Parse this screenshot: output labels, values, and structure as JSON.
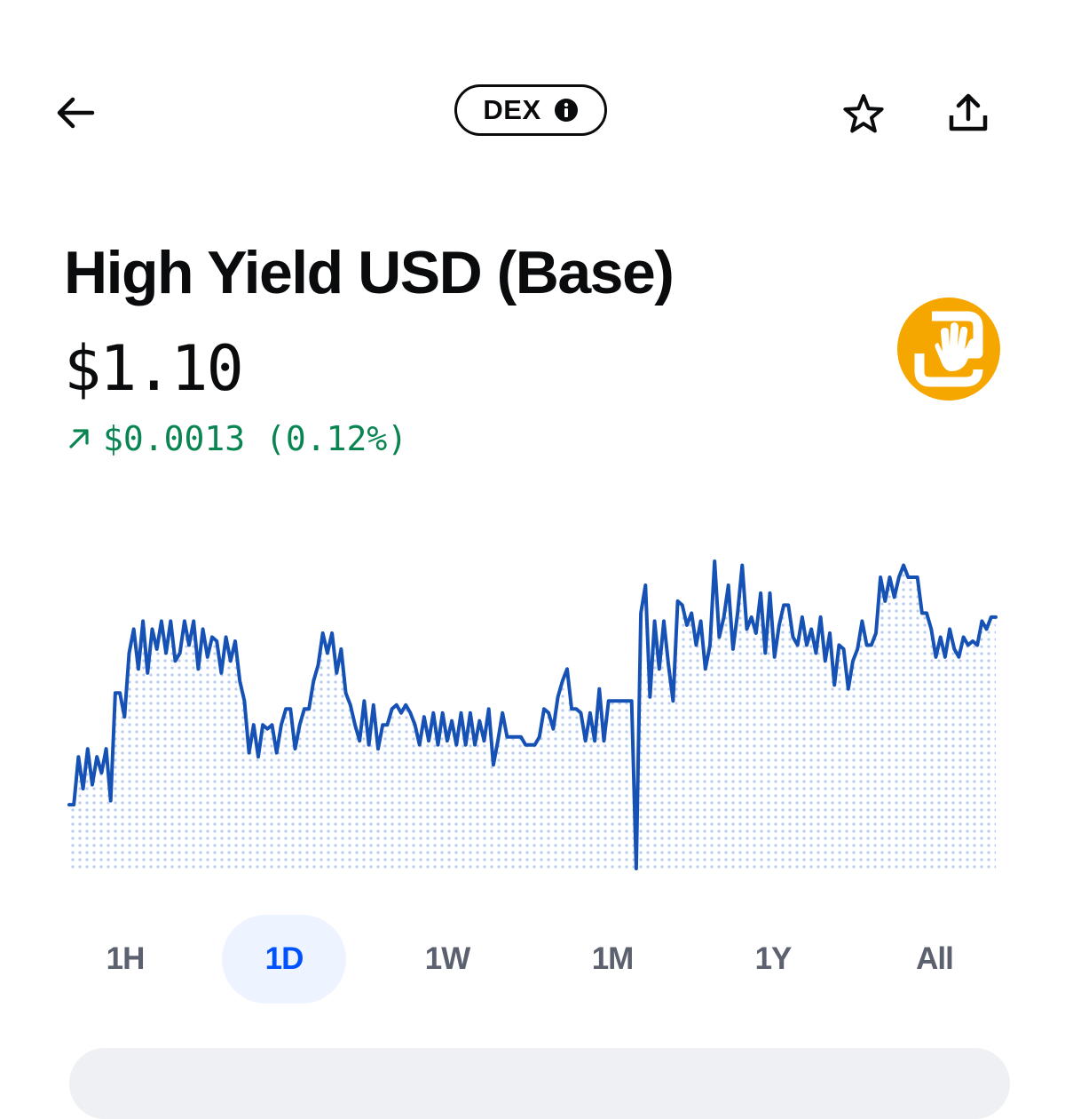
{
  "header": {
    "badge_label": "DEX",
    "back_icon": "arrow-left-icon",
    "info_icon": "info-icon",
    "favorite_icon": "star-icon",
    "share_icon": "share-icon"
  },
  "asset": {
    "name": "High Yield USD (Base)",
    "price": "$1.10",
    "change_text": "$0.0013 (0.12%)",
    "change_icon": "arrow-up-right-icon",
    "logo_icon": "hand-token-logo-icon"
  },
  "colors": {
    "positive": "#098551",
    "chart_line": "#1652b5",
    "chart_fill_dots": "#b9cdf0",
    "accent": "#0052ff",
    "token_logo": "#f5a700"
  },
  "timeframes": [
    "1H",
    "1D",
    "1W",
    "1M",
    "1Y",
    "All"
  ],
  "active_timeframe": "1D",
  "chart_data": {
    "type": "area",
    "title": "",
    "xlabel": "",
    "ylabel": "",
    "y": [
      1.0978,
      1.0978,
      1.099,
      1.0982,
      1.0992,
      1.0983,
      1.099,
      1.0986,
      1.0992,
      1.0979,
      1.1006,
      1.1006,
      1.1,
      1.1016,
      1.1022,
      1.1012,
      1.1024,
      1.1011,
      1.1022,
      1.1017,
      1.1024,
      1.1016,
      1.1024,
      1.1014,
      1.1016,
      1.1024,
      1.1018,
      1.1024,
      1.1012,
      1.1022,
      1.1015,
      1.102,
      1.1019,
      1.1011,
      1.102,
      1.1014,
      1.1019,
      1.1009,
      1.1004,
      1.0991,
      1.0998,
      1.099,
      1.0998,
      1.0997,
      1.0998,
      1.0991,
      1.0998,
      1.1002,
      1.1002,
      1.0992,
      1.0998,
      1.1002,
      1.1002,
      1.1009,
      1.1013,
      1.1021,
      1.1016,
      1.1021,
      1.1011,
      1.1017,
      1.1006,
      1.1003,
      1.0998,
      1.0994,
      1.1004,
      1.0993,
      1.1003,
      1.0992,
      1.0998,
      1.0998,
      1.1002,
      1.1003,
      1.1001,
      1.1003,
      1.1001,
      1.0998,
      1.0993,
      1.1,
      1.0994,
      1.1001,
      1.0993,
      1.1001,
      1.0994,
      1.0999,
      1.0993,
      1.1001,
      1.0993,
      1.1001,
      1.0993,
      1.0999,
      1.0994,
      1.1002,
      1.0988,
      1.0994,
      1.1001,
      1.0995,
      1.0995,
      1.0995,
      1.0995,
      1.0993,
      1.0993,
      1.0993,
      1.0995,
      1.1002,
      1.1001,
      1.0997,
      1.1005,
      1.1009,
      1.1012,
      1.1002,
      1.1002,
      1.1001,
      1.0994,
      1.1001,
      1.0994,
      1.1007,
      1.0994,
      1.1004,
      1.1004,
      1.1004,
      1.1004,
      1.1004,
      1.1004,
      1.0962,
      1.1026,
      1.1033,
      1.1005,
      1.1024,
      1.1012,
      1.1024,
      1.1013,
      1.1004,
      1.1029,
      1.1028,
      1.1023,
      1.1026,
      1.1018,
      1.1024,
      1.1012,
      1.1018,
      1.1039,
      1.102,
      1.1025,
      1.1033,
      1.1017,
      1.1026,
      1.1038,
      1.1022,
      1.1025,
      1.1021,
      1.1031,
      1.1016,
      1.1031,
      1.1015,
      1.1023,
      1.1028,
      1.1028,
      1.102,
      1.1018,
      1.1025,
      1.1018,
      1.1022,
      1.1016,
      1.1025,
      1.1014,
      1.1021,
      1.1008,
      1.1018,
      1.1017,
      1.1007,
      1.1014,
      1.1017,
      1.1024,
      1.1018,
      1.1018,
      1.1021,
      1.1035,
      1.1029,
      1.1035,
      1.103,
      1.1035,
      1.1038,
      1.1035,
      1.1035,
      1.1035,
      1.1026,
      1.1026,
      1.1022,
      1.1015,
      1.102,
      1.1015,
      1.1022,
      1.1017,
      1.1015,
      1.102,
      1.1018,
      1.1019,
      1.1018,
      1.1024,
      1.1022,
      1.1025,
      1.1025
    ]
  }
}
